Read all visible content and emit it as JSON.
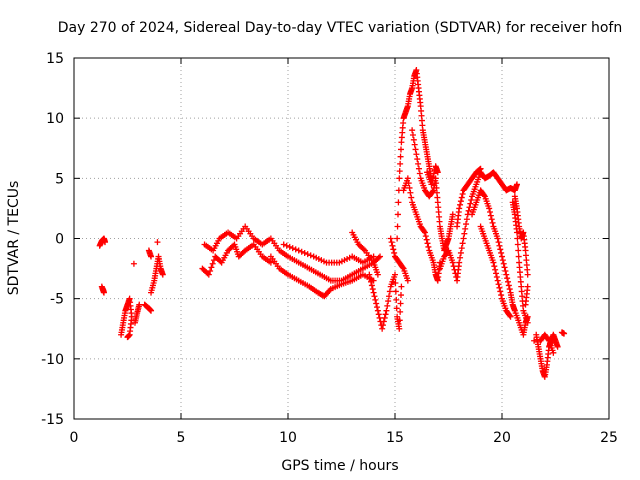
{
  "chart_data": {
    "type": "scatter",
    "title": "Day 270 of 2024, Sidereal Day-to-day VTEC variation (SDTVAR) for receiver hofn",
    "xlabel": "GPS time / hours",
    "ylabel": "SDTVAR / TECUs",
    "xlim": [
      0,
      25
    ],
    "ylim": [
      -15,
      15
    ],
    "xticks": [
      "0",
      "5",
      "10",
      "15",
      "20",
      "25"
    ],
    "yticks": [
      "15",
      "10",
      "5",
      "0",
      "-5",
      "-10",
      "-15"
    ],
    "grid": true,
    "marker": "+",
    "series": [
      {
        "name": "SDTVAR",
        "color": "#ff0000",
        "segments": [
          [
            [
              1.2,
              -0.6
            ],
            [
              1.3,
              -0.2
            ],
            [
              1.4,
              0.0
            ],
            [
              1.45,
              -0.3
            ]
          ],
          [
            [
              1.3,
              -4.0
            ],
            [
              1.4,
              -4.5
            ],
            [
              1.35,
              -4.2
            ]
          ],
          [
            [
              2.2,
              -8.0
            ],
            [
              2.3,
              -7.0
            ],
            [
              2.4,
              -6.0
            ],
            [
              2.5,
              -5.5
            ],
            [
              2.6,
              -5.0
            ],
            [
              2.7,
              -6.5
            ],
            [
              2.6,
              -8.0
            ],
            [
              2.5,
              -8.2
            ]
          ],
          [
            [
              2.8,
              -2.1
            ]
          ],
          [
            [
              2.85,
              -7.0
            ],
            [
              2.95,
              -6.2
            ],
            [
              3.05,
              -5.5
            ]
          ],
          [
            [
              3.3,
              -5.5
            ],
            [
              3.5,
              -5.8
            ],
            [
              3.6,
              -6.0
            ]
          ],
          [
            [
              3.5,
              -1.0
            ],
            [
              3.6,
              -1.5
            ]
          ],
          [
            [
              3.6,
              -4.5
            ],
            [
              3.75,
              -3.5
            ],
            [
              3.85,
              -2.5
            ],
            [
              3.95,
              -1.5
            ],
            [
              4.05,
              -2.5
            ],
            [
              4.15,
              -3.0
            ]
          ],
          [
            [
              3.9,
              -0.3
            ]
          ],
          [
            [
              6.0,
              -2.5
            ],
            [
              6.3,
              -3.0
            ],
            [
              6.6,
              -1.5
            ],
            [
              6.9,
              -2.0
            ],
            [
              7.2,
              -1.0
            ],
            [
              7.5,
              -0.5
            ],
            [
              7.7,
              -1.5
            ],
            [
              8.0,
              -1.0
            ],
            [
              8.4,
              -0.5
            ],
            [
              8.8,
              -1.5
            ],
            [
              9.2,
              -2.0
            ]
          ],
          [
            [
              6.1,
              -0.5
            ],
            [
              6.5,
              -1.0
            ],
            [
              6.8,
              0.0
            ],
            [
              7.2,
              0.5
            ],
            [
              7.6,
              0.0
            ],
            [
              8.0,
              1.0
            ],
            [
              8.4,
              0.0
            ],
            [
              8.8,
              -0.5
            ],
            [
              9.2,
              0.0
            ],
            [
              9.6,
              -1.0
            ],
            [
              10.0,
              -1.5
            ],
            [
              10.5,
              -2.0
            ],
            [
              11.0,
              -2.5
            ],
            [
              11.5,
              -3.0
            ],
            [
              12.0,
              -3.5
            ],
            [
              12.5,
              -3.5
            ],
            [
              13.0,
              -3.0
            ],
            [
              13.5,
              -2.5
            ],
            [
              14.0,
              -2.0
            ],
            [
              14.3,
              -1.5
            ]
          ],
          [
            [
              9.2,
              -1.5
            ],
            [
              9.6,
              -2.5
            ],
            [
              10.0,
              -3.0
            ],
            [
              10.5,
              -3.5
            ],
            [
              11.0,
              -4.0
            ],
            [
              11.4,
              -4.5
            ],
            [
              11.7,
              -4.8
            ],
            [
              12.0,
              -4.2
            ],
            [
              12.5,
              -3.8
            ],
            [
              13.0,
              -3.5
            ],
            [
              13.5,
              -3.0
            ],
            [
              14.0,
              -3.5
            ]
          ],
          [
            [
              9.8,
              -0.5
            ],
            [
              10.5,
              -1.0
            ],
            [
              11.2,
              -1.5
            ],
            [
              11.8,
              -2.0
            ],
            [
              12.4,
              -2.0
            ],
            [
              13.0,
              -1.5
            ],
            [
              13.5,
              -2.0
            ],
            [
              14.0,
              -1.5
            ]
          ],
          [
            [
              13.8,
              -3.0
            ],
            [
              14.0,
              -4.5
            ],
            [
              14.2,
              -6.0
            ],
            [
              14.4,
              -7.5
            ],
            [
              14.6,
              -6.0
            ],
            [
              14.8,
              -4.0
            ],
            [
              15.0,
              -3.0
            ],
            [
              15.1,
              -6.5
            ],
            [
              15.2,
              -7.5
            ],
            [
              15.3,
              -4.0
            ]
          ],
          [
            [
              13.0,
              0.5
            ],
            [
              13.3,
              -0.5
            ],
            [
              13.6,
              -1.0
            ],
            [
              14.0,
              -2.0
            ],
            [
              14.2,
              -3.0
            ]
          ],
          [
            [
              14.8,
              0.0
            ],
            [
              15.0,
              -1.5
            ],
            [
              15.2,
              -2.0
            ],
            [
              15.4,
              -2.5
            ],
            [
              15.6,
              -3.5
            ]
          ],
          [
            [
              15.1,
              0.0
            ],
            [
              15.2,
              5.0
            ],
            [
              15.3,
              8.0
            ],
            [
              15.4,
              10.0
            ],
            [
              15.5,
              10.5
            ],
            [
              15.6,
              11.0
            ],
            [
              15.7,
              12.0
            ],
            [
              15.8,
              12.5
            ],
            [
              15.9,
              13.5
            ],
            [
              16.0,
              14.0
            ],
            [
              16.1,
              12.5
            ],
            [
              16.2,
              11.0
            ],
            [
              16.3,
              9.0
            ],
            [
              16.4,
              8.0
            ],
            [
              16.5,
              7.0
            ],
            [
              16.6,
              6.0
            ],
            [
              16.7,
              5.0
            ]
          ],
          [
            [
              15.4,
              4.0
            ],
            [
              15.6,
              5.0
            ],
            [
              15.8,
              3.0
            ],
            [
              16.0,
              2.0
            ],
            [
              16.2,
              1.0
            ],
            [
              16.4,
              0.5
            ],
            [
              16.6,
              -1.0
            ],
            [
              16.8,
              -2.0
            ],
            [
              16.9,
              -3.0
            ],
            [
              17.0,
              -3.5
            ],
            [
              17.1,
              -2.0
            ]
          ],
          [
            [
              15.8,
              9.0
            ],
            [
              16.0,
              7.0
            ],
            [
              16.2,
              5.0
            ],
            [
              16.4,
              4.0
            ],
            [
              16.6,
              3.5
            ],
            [
              16.8,
              4.0
            ],
            [
              16.9,
              5.0
            ],
            [
              17.0,
              3.0
            ],
            [
              17.1,
              1.0
            ],
            [
              17.2,
              0.0
            ],
            [
              17.3,
              -1.0
            ],
            [
              17.4,
              -0.5
            ],
            [
              17.5,
              0.0
            ],
            [
              17.6,
              1.0
            ],
            [
              17.7,
              2.0
            ]
          ],
          [
            [
              16.5,
              5.5
            ],
            [
              16.7,
              4.5
            ],
            [
              16.9,
              6.0
            ],
            [
              17.0,
              5.5
            ]
          ],
          [
            [
              17.1,
              -2.5
            ],
            [
              17.3,
              -1.5
            ],
            [
              17.5,
              -1.0
            ],
            [
              17.7,
              -2.0
            ],
            [
              17.9,
              -3.5
            ],
            [
              18.0,
              -2.0
            ],
            [
              18.2,
              0.0
            ],
            [
              18.4,
              2.0
            ],
            [
              18.6,
              3.5
            ],
            [
              18.8,
              4.5
            ],
            [
              19.0,
              5.5
            ],
            [
              19.2,
              5.0
            ],
            [
              19.4,
              5.2
            ],
            [
              19.6,
              5.5
            ],
            [
              19.8,
              5.0
            ],
            [
              20.0,
              4.5
            ],
            [
              20.2,
              4.0
            ],
            [
              20.4,
              4.2
            ],
            [
              20.6,
              4.0
            ],
            [
              20.7,
              4.5
            ]
          ],
          [
            [
              17.9,
              1.0
            ],
            [
              18.0,
              2.5
            ],
            [
              18.2,
              4.0
            ],
            [
              18.4,
              4.5
            ],
            [
              18.6,
              5.0
            ],
            [
              18.8,
              5.5
            ],
            [
              19.0,
              5.8
            ]
          ],
          [
            [
              18.6,
              2.0
            ],
            [
              18.8,
              3.0
            ],
            [
              19.0,
              4.0
            ],
            [
              19.2,
              3.5
            ],
            [
              19.4,
              2.5
            ],
            [
              19.6,
              1.0
            ],
            [
              19.8,
              0.0
            ],
            [
              20.0,
              -1.5
            ],
            [
              20.2,
              -3.0
            ],
            [
              20.4,
              -4.5
            ],
            [
              20.5,
              -5.5
            ],
            [
              20.6,
              -6.0
            ],
            [
              20.8,
              -7.0
            ],
            [
              21.0,
              -8.0
            ],
            [
              21.1,
              -7.0
            ],
            [
              21.2,
              -6.5
            ]
          ],
          [
            [
              19.0,
              1.0
            ],
            [
              19.2,
              0.0
            ],
            [
              19.4,
              -1.0
            ],
            [
              19.6,
              -2.0
            ],
            [
              19.8,
              -3.5
            ],
            [
              20.0,
              -5.0
            ],
            [
              20.2,
              -6.0
            ],
            [
              20.4,
              -6.5
            ]
          ],
          [
            [
              20.6,
              3.5
            ],
            [
              20.7,
              2.5
            ],
            [
              20.8,
              1.0
            ],
            [
              20.9,
              0.0
            ],
            [
              21.0,
              0.5
            ],
            [
              21.1,
              -1.0
            ],
            [
              21.2,
              -3.0
            ]
          ],
          [
            [
              20.5,
              3.0
            ],
            [
              20.6,
              2.0
            ],
            [
              20.7,
              0.5
            ],
            [
              20.8,
              -2.0
            ],
            [
              20.9,
              -4.0
            ],
            [
              21.0,
              -6.0
            ],
            [
              21.2,
              -7.0
            ]
          ],
          [
            [
              21.1,
              -5.5
            ],
            [
              21.2,
              -4.0
            ]
          ],
          [
            [
              21.5,
              -8.5
            ]
          ],
          [
            [
              21.6,
              -8.0
            ],
            [
              21.7,
              -9.0
            ],
            [
              21.8,
              -10.0
            ],
            [
              21.9,
              -11.0
            ],
            [
              22.0,
              -11.5
            ],
            [
              22.1,
              -10.5
            ],
            [
              22.2,
              -9.0
            ],
            [
              22.3,
              -8.5
            ],
            [
              22.4,
              -8.0
            ],
            [
              22.5,
              -8.5
            ],
            [
              22.6,
              -9.0
            ]
          ],
          [
            [
              21.8,
              -8.5
            ],
            [
              22.0,
              -8.0
            ],
            [
              22.2,
              -8.5
            ],
            [
              22.4,
              -9.5
            ]
          ],
          [
            [
              22.8,
              -7.8
            ],
            [
              22.9,
              -7.9
            ]
          ]
        ]
      }
    ]
  }
}
